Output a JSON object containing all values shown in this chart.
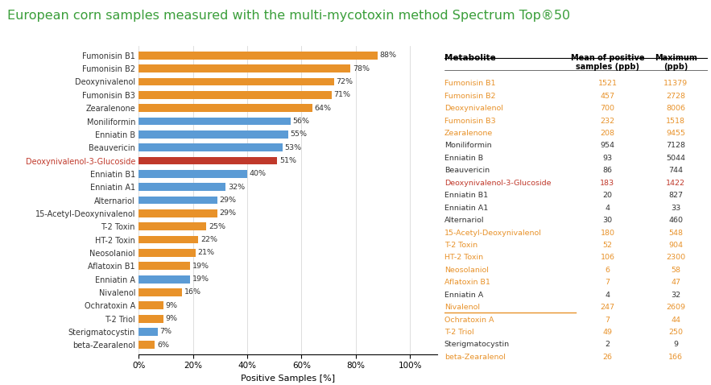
{
  "title_part1": "European corn samples measured with the multi-mycotoxin method Spectrum Top",
  "title_sup": "®",
  "title_part2": "50",
  "title_color": "#3a9e3a",
  "xlabel": "Positive Samples [%]",
  "categories": [
    "Fumonisin B1",
    "Fumonisin B2",
    "Deoxynivalenol",
    "Fumonisin B3",
    "Zearalenone",
    "Moniliformin",
    "Enniatin B",
    "Beauvericin",
    "Deoxynivalenol-3-Glucoside",
    "Enniatin B1",
    "Enniatin A1",
    "Alternariol",
    "15-Acetyl-Deoxynivalenol",
    "T-2 Toxin",
    "HT-2 Toxin",
    "Neosolaniol",
    "Aflatoxin B1",
    "Enniatin A",
    "Nivalenol",
    "Ochratoxin A",
    "T-2 Triol",
    "Sterigmatocystin",
    "beta-Zearalenol"
  ],
  "values": [
    88,
    78,
    72,
    71,
    64,
    56,
    55,
    53,
    51,
    40,
    32,
    29,
    29,
    25,
    22,
    21,
    19,
    19,
    16,
    9,
    9,
    7,
    6
  ],
  "bar_colors": [
    "#e8922a",
    "#e8922a",
    "#e8922a",
    "#e8922a",
    "#e8922a",
    "#5b9bd5",
    "#5b9bd5",
    "#5b9bd5",
    "#c0392b",
    "#5b9bd5",
    "#5b9bd5",
    "#5b9bd5",
    "#e8922a",
    "#e8922a",
    "#e8922a",
    "#e8922a",
    "#e8922a",
    "#5b9bd5",
    "#e8922a",
    "#e8922a",
    "#e8922a",
    "#5b9bd5",
    "#e8922a"
  ],
  "label_colors": [
    "#333333",
    "#333333",
    "#333333",
    "#333333",
    "#333333",
    "#333333",
    "#333333",
    "#333333",
    "#c0392b",
    "#333333",
    "#333333",
    "#333333",
    "#333333",
    "#333333",
    "#333333",
    "#333333",
    "#333333",
    "#333333",
    "#333333",
    "#333333",
    "#333333",
    "#333333",
    "#333333"
  ],
  "table_metabolites": [
    "Fumonisin B1",
    "Fumonisin B2",
    "Deoxynivalenol",
    "Fumonisin B3",
    "Zearalenone",
    "Moniliformin",
    "Enniatin B",
    "Beauvericin",
    "Deoxynivalenol-3-Glucoside",
    "Enniatin B1",
    "Enniatin A1",
    "Alternariol",
    "15-Acetyl-Deoxynivalenol",
    "T-2 Toxin",
    "HT-2 Toxin",
    "Neosolaniol",
    "Aflatoxin B1",
    "Enniatin A",
    "Nivalenol",
    "Ochratoxin A",
    "T-2 Triol",
    "Sterigmatocystin",
    "beta-Zearalenol"
  ],
  "table_mean": [
    1521,
    457,
    700,
    232,
    208,
    954,
    93,
    86,
    183,
    20,
    4,
    30,
    180,
    52,
    106,
    6,
    7,
    4,
    247,
    7,
    49,
    2,
    26
  ],
  "table_max": [
    11379,
    2728,
    8006,
    1518,
    9455,
    7128,
    5044,
    744,
    1422,
    827,
    33,
    460,
    548,
    904,
    2300,
    58,
    47,
    32,
    2609,
    44,
    250,
    9,
    166
  ],
  "table_name_colors": [
    "#e8922a",
    "#e8922a",
    "#e8922a",
    "#e8922a",
    "#e8922a",
    "#333333",
    "#333333",
    "#333333",
    "#c0392b",
    "#333333",
    "#333333",
    "#333333",
    "#e8922a",
    "#e8922a",
    "#e8922a",
    "#e8922a",
    "#e8922a",
    "#333333",
    "#e8922a",
    "#e8922a",
    "#e8922a",
    "#333333",
    "#e8922a"
  ],
  "table_value_colors": [
    "#e8922a",
    "#e8922a",
    "#e8922a",
    "#e8922a",
    "#e8922a",
    "#333333",
    "#333333",
    "#333333",
    "#c0392b",
    "#333333",
    "#333333",
    "#333333",
    "#e8922a",
    "#e8922a",
    "#e8922a",
    "#e8922a",
    "#e8922a",
    "#333333",
    "#e8922a",
    "#e8922a",
    "#e8922a",
    "#333333",
    "#e8922a"
  ],
  "bg_color": "#ffffff",
  "grid_color": "#d0d0d0"
}
